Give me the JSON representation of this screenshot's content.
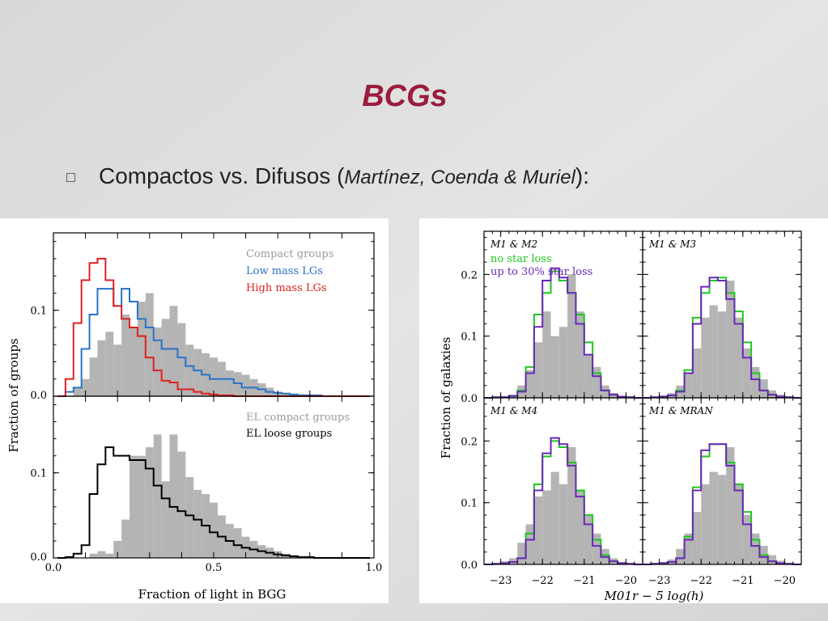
{
  "slide": {
    "title": "BCGs",
    "bullet": {
      "prefix": "Compactos vs. Difusos (",
      "authors": "Martínez, Coenda & Muriel",
      "suffix": "):"
    }
  },
  "colors": {
    "title": "#9b1c3c",
    "gray": "#b4b4b4",
    "blue": "#2a72c6",
    "red": "#e02020",
    "green": "#1ec81e",
    "purple": "#6a28b8",
    "black": "#000000"
  },
  "chart_data": [
    {
      "type": "step-histogram",
      "panel": "left-top",
      "xlabel": "",
      "ylabel": "Fraction of groups",
      "xlim": [
        0,
        1
      ],
      "ylim": [
        0,
        0.19
      ],
      "yticks": [
        "0.0",
        "0.1"
      ],
      "bin_width": 0.025,
      "x": [
        0.025,
        0.05,
        0.075,
        0.1,
        0.125,
        0.15,
        0.175,
        0.2,
        0.225,
        0.25,
        0.275,
        0.3,
        0.325,
        0.35,
        0.375,
        0.4,
        0.425,
        0.45,
        0.475,
        0.5,
        0.525,
        0.55,
        0.575,
        0.6,
        0.625,
        0.65,
        0.675,
        0.7,
        0.725,
        0.75,
        0.775,
        0.8,
        0.825,
        0.85,
        0.875,
        0.9,
        0.925,
        0.95,
        0.975
      ],
      "series": [
        {
          "name": "Compact groups",
          "style": "filled",
          "color": "#b4b4b4",
          "values": [
            0,
            0,
            0.01,
            0.02,
            0.045,
            0.065,
            0.075,
            0.06,
            0.095,
            0.08,
            0.11,
            0.12,
            0.08,
            0.09,
            0.105,
            0.085,
            0.06,
            0.055,
            0.05,
            0.045,
            0.04,
            0.03,
            0.028,
            0.025,
            0.02,
            0.015,
            0.01,
            0.005,
            0.003,
            0.003,
            0.002,
            0.002,
            0.001,
            0.001,
            0.001,
            0,
            0,
            0,
            0
          ]
        },
        {
          "name": "Low mass LGs",
          "style": "step",
          "color": "#2a72c6",
          "values": [
            0,
            0.005,
            0.01,
            0.055,
            0.095,
            0.125,
            0.125,
            0.105,
            0.125,
            0.11,
            0.09,
            0.08,
            0.065,
            0.055,
            0.055,
            0.045,
            0.035,
            0.03,
            0.025,
            0.02,
            0.02,
            0.02,
            0.015,
            0.01,
            0.01,
            0.008,
            0.005,
            0.004,
            0.003,
            0.002,
            0.001,
            0.001,
            0.001,
            0,
            0,
            0,
            0,
            0,
            0
          ]
        },
        {
          "name": "High mass LGs",
          "style": "step",
          "color": "#e02020",
          "values": [
            0,
            0.02,
            0.085,
            0.135,
            0.155,
            0.16,
            0.135,
            0.105,
            0.09,
            0.08,
            0.07,
            0.045,
            0.03,
            0.018,
            0.016,
            0.008,
            0.008,
            0.005,
            0.003,
            0.002,
            0.001,
            0.001,
            0,
            0,
            0,
            0,
            0,
            0,
            0,
            0,
            0,
            0,
            0,
            0,
            0,
            0,
            0,
            0,
            0
          ]
        }
      ]
    },
    {
      "type": "step-histogram",
      "panel": "left-bottom",
      "xlabel": "Fraction of light in BGG",
      "ylabel": "",
      "xlim": [
        0,
        1
      ],
      "ylim": [
        0,
        0.19
      ],
      "xticks": [
        "0.0",
        "0.5",
        "1.0"
      ],
      "yticks": [
        "0.0",
        "0.1"
      ],
      "bin_width": 0.025,
      "x": [
        0.025,
        0.05,
        0.075,
        0.1,
        0.125,
        0.15,
        0.175,
        0.2,
        0.225,
        0.25,
        0.275,
        0.3,
        0.325,
        0.35,
        0.375,
        0.4,
        0.425,
        0.45,
        0.475,
        0.5,
        0.525,
        0.55,
        0.575,
        0.6,
        0.625,
        0.65,
        0.675,
        0.7,
        0.725,
        0.75,
        0.775,
        0.8,
        0.825,
        0.85,
        0.875,
        0.9,
        0.925,
        0.95,
        0.975
      ],
      "series": [
        {
          "name": "EL compact groups",
          "style": "filled",
          "color": "#b4b4b4",
          "values": [
            0,
            0,
            0,
            0,
            0.005,
            0.008,
            0.005,
            0.02,
            0.045,
            0.12,
            0.12,
            0.13,
            0.145,
            0.09,
            0.145,
            0.125,
            0.095,
            0.08,
            0.075,
            0.065,
            0.05,
            0.04,
            0.035,
            0.025,
            0.02,
            0.015,
            0.012,
            0.008,
            0.005,
            0.003,
            0.002,
            0.002,
            0.001,
            0,
            0,
            0,
            0,
            0,
            0
          ]
        },
        {
          "name": "EL loose groups",
          "style": "step",
          "color": "#000000",
          "values": [
            0,
            0.001,
            0.005,
            0.015,
            0.075,
            0.11,
            0.13,
            0.12,
            0.12,
            0.115,
            0.115,
            0.105,
            0.085,
            0.07,
            0.06,
            0.055,
            0.05,
            0.045,
            0.038,
            0.03,
            0.025,
            0.02,
            0.015,
            0.012,
            0.01,
            0.008,
            0.006,
            0.004,
            0.003,
            0.002,
            0.001,
            0.001,
            0,
            0,
            0,
            0,
            0,
            0,
            0
          ]
        }
      ]
    },
    {
      "type": "step-histogram-grid",
      "panel": "right",
      "xlabel": "M01r − 5 log(h)",
      "ylabel": "Fraction of galaxies",
      "xlim": [
        -23.4,
        -19.6
      ],
      "ylim": [
        0,
        0.27
      ],
      "xticks": [
        "−23",
        "−22",
        "−21",
        "−20"
      ],
      "yticks": [
        "0.0",
        "0.1",
        "0.2"
      ],
      "bin_width": 0.2,
      "x": [
        -23.3,
        -23.1,
        -22.9,
        -22.7,
        -22.5,
        -22.3,
        -22.1,
        -21.9,
        -21.7,
        -21.5,
        -21.3,
        -21.1,
        -20.9,
        -20.7,
        -20.5,
        -20.3,
        -20.1,
        -19.9,
        -19.7
      ],
      "legend": [
        "no star loss",
        "up to 30% star loss"
      ],
      "subpanels": [
        {
          "label": "M1 & M2",
          "gray": [
            0,
            0.001,
            0.003,
            0.005,
            0.02,
            0.045,
            0.09,
            0.14,
            0.1,
            0.115,
            0.2,
            0.14,
            0.07,
            0.05,
            0.02,
            0.008,
            0.003,
            0.002,
            0.001
          ],
          "green": [
            0,
            0.001,
            0.001,
            0.003,
            0.012,
            0.05,
            0.135,
            0.17,
            0.205,
            0.19,
            0.17,
            0.135,
            0.09,
            0.04,
            0.012,
            0.005,
            0.002,
            0.001,
            0
          ],
          "purple": [
            0,
            0.001,
            0.001,
            0.003,
            0.01,
            0.04,
            0.115,
            0.19,
            0.21,
            0.195,
            0.17,
            0.12,
            0.07,
            0.035,
            0.012,
            0.005,
            0.002,
            0.001,
            0
          ]
        },
        {
          "label": "M1 & M3",
          "gray": [
            0.001,
            0.002,
            0.004,
            0.008,
            0.02,
            0.04,
            0.08,
            0.13,
            0.15,
            0.14,
            0.19,
            0.13,
            0.08,
            0.05,
            0.03,
            0.012,
            0.005,
            0.002,
            0.001
          ],
          "green": [
            0,
            0.001,
            0.002,
            0.004,
            0.012,
            0.045,
            0.13,
            0.17,
            0.19,
            0.195,
            0.17,
            0.14,
            0.09,
            0.04,
            0.012,
            0.005,
            0.002,
            0.001,
            0
          ],
          "purple": [
            0,
            0.001,
            0.002,
            0.004,
            0.01,
            0.04,
            0.12,
            0.18,
            0.195,
            0.19,
            0.16,
            0.12,
            0.065,
            0.03,
            0.012,
            0.005,
            0.002,
            0.001,
            0
          ]
        },
        {
          "label": "M1 & M4",
          "gray": [
            0.001,
            0.002,
            0.005,
            0.01,
            0.035,
            0.065,
            0.11,
            0.12,
            0.15,
            0.13,
            0.19,
            0.12,
            0.08,
            0.05,
            0.025,
            0.01,
            0.004,
            0.002,
            0.001
          ],
          "green": [
            0,
            0.001,
            0.002,
            0.004,
            0.01,
            0.05,
            0.13,
            0.175,
            0.2,
            0.19,
            0.165,
            0.12,
            0.08,
            0.04,
            0.015,
            0.005,
            0.002,
            0.001,
            0
          ],
          "purple": [
            0,
            0.001,
            0.002,
            0.004,
            0.01,
            0.04,
            0.12,
            0.18,
            0.205,
            0.195,
            0.16,
            0.11,
            0.065,
            0.03,
            0.012,
            0.005,
            0.002,
            0.001,
            0
          ]
        },
        {
          "label": "M1 & MRAN",
          "gray": [
            0.001,
            0.002,
            0.004,
            0.008,
            0.025,
            0.05,
            0.085,
            0.13,
            0.15,
            0.145,
            0.19,
            0.13,
            0.08,
            0.05,
            0.03,
            0.015,
            0.006,
            0.002,
            0.001
          ],
          "green": [
            0,
            0.001,
            0.002,
            0.004,
            0.01,
            0.045,
            0.125,
            0.175,
            0.195,
            0.195,
            0.165,
            0.13,
            0.085,
            0.04,
            0.015,
            0.005,
            0.002,
            0.001,
            0
          ],
          "purple": [
            0,
            0.001,
            0.002,
            0.004,
            0.01,
            0.04,
            0.12,
            0.185,
            0.195,
            0.195,
            0.16,
            0.12,
            0.065,
            0.03,
            0.012,
            0.005,
            0.002,
            0.001,
            0
          ]
        }
      ]
    }
  ]
}
